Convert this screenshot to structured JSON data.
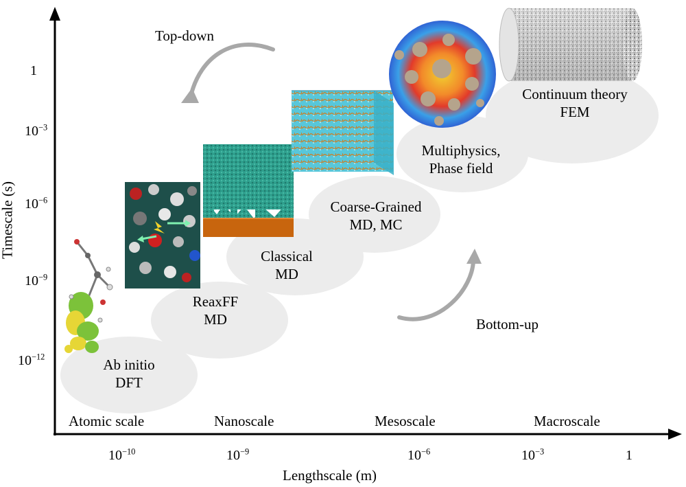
{
  "axes": {
    "x_title": "Lengthscale (m)",
    "y_title": "Timescale (s)",
    "x_ticks": [
      {
        "base": "10",
        "exp": "−10"
      },
      {
        "base": "10",
        "exp": "−9"
      },
      {
        "base": "10",
        "exp": "−6"
      },
      {
        "base": "10",
        "exp": "−3"
      },
      {
        "base": "1",
        "exp": ""
      }
    ],
    "y_ticks": [
      {
        "base": "1",
        "exp": ""
      },
      {
        "base": "10",
        "exp": "−3"
      },
      {
        "base": "10",
        "exp": "−6"
      },
      {
        "base": "10",
        "exp": "−9"
      },
      {
        "base": "10",
        "exp": "−12"
      }
    ]
  },
  "scales": [
    "Atomic scale",
    "Nanoscale",
    "Mesoscale",
    "Macroscale"
  ],
  "methods": [
    {
      "line1": "Ab initio",
      "line2": "DFT"
    },
    {
      "line1": "ReaxFF",
      "line2": "MD"
    },
    {
      "line1": "Classical",
      "line2": "MD"
    },
    {
      "line1": "Coarse-Grained",
      "line2": "MD, MC"
    },
    {
      "line1": "Multiphysics,",
      "line2": "Phase field"
    },
    {
      "line1": "Continuum theory",
      "line2": "FEM"
    }
  ],
  "directions": {
    "top_down": "Top-down",
    "bottom_up": "Bottom-up"
  },
  "colors": {
    "blob": "#ececec",
    "axis": "#000000",
    "teal": "#2e9c8c",
    "copper": "#c86a10",
    "cyan": "#4ec3d8",
    "arrow_grey": "#a8a8a8"
  }
}
